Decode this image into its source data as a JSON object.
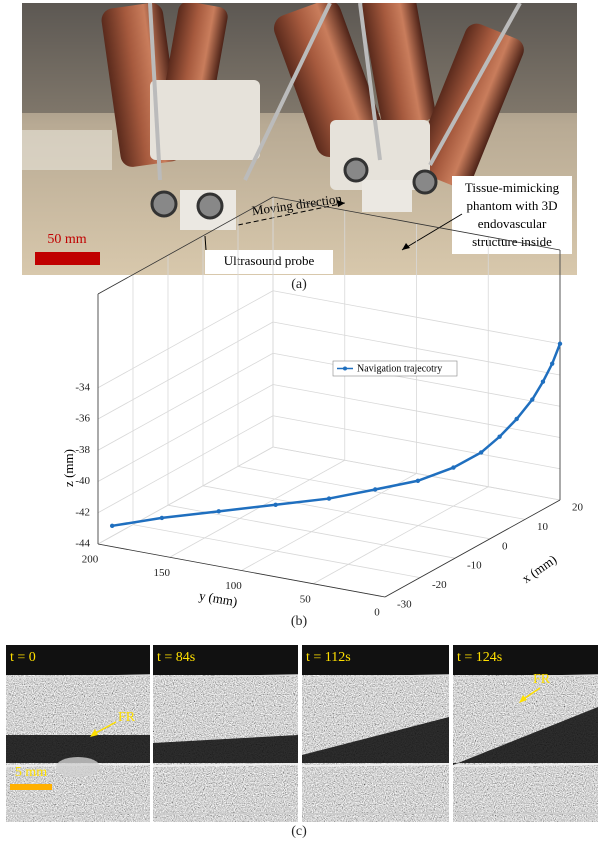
{
  "panel_a": {
    "scale_bar": "50 mm",
    "probe_label": "Ultrasound probe",
    "direction_label": "Moving direction",
    "phantom_label": [
      "Tissue-mimicking",
      "phantom with 3D",
      "endovascular",
      "structure inside"
    ],
    "caption": "(a)"
  },
  "chart_data": {
    "type": "line3d",
    "xlabel": "x (mm)",
    "ylabel": "y (mm)",
    "zlabel": "z (mm)",
    "xlim": [
      -30,
      20
    ],
    "ylim": [
      0,
      200
    ],
    "zlim": [
      -44,
      -28
    ],
    "xticks": [
      -30,
      -20,
      -10,
      0,
      10,
      20
    ],
    "yticks": [
      0,
      50,
      100,
      150,
      200
    ],
    "zticks": [
      -44,
      -42,
      -40,
      -38,
      -36,
      -34
    ],
    "grid": true,
    "legend": "upper right",
    "caption": "(b)",
    "series": [
      {
        "name": "Navigation trajecotry",
        "color": "#1f6fbf",
        "x": [
          -28,
          -22,
          -16,
          -10,
          -5,
          0,
          4,
          8,
          11,
          13,
          15,
          17,
          18,
          19,
          20
        ],
        "y": [
          195,
          175,
          150,
          125,
          100,
          80,
          60,
          45,
          33,
          25,
          18,
          12,
          7,
          3,
          0
        ],
        "z": [
          -43,
          -42.9,
          -42.8,
          -42.7,
          -42.5,
          -42.2,
          -41.8,
          -41.2,
          -40.4,
          -39.5,
          -38.5,
          -37.4,
          -36.3,
          -35.2,
          -34
        ]
      }
    ]
  },
  "panel_c": {
    "frames": [
      "t = 0",
      "t = 84s",
      "t = 112s",
      "t = 124s"
    ],
    "annotations": [
      "FR",
      "FR"
    ],
    "scale_bar": "5 mm",
    "caption": "(c)"
  }
}
